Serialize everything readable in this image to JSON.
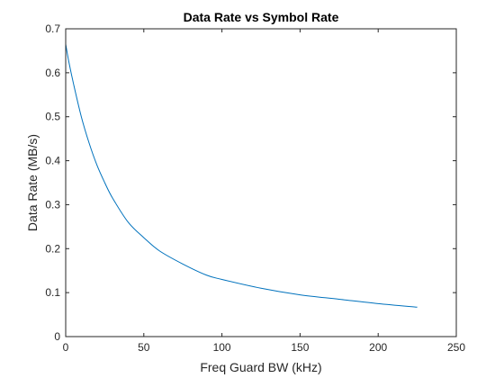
{
  "chart_data": {
    "type": "line",
    "title": "Data Rate vs Symbol Rate",
    "xlabel": "Freq Guard BW (kHz)",
    "ylabel": "Data Rate (MB/s)",
    "xlim": [
      0,
      250
    ],
    "ylim": [
      0,
      0.7
    ],
    "xticks": [
      0,
      50,
      100,
      150,
      200,
      250
    ],
    "yticks": [
      0,
      0.1,
      0.2,
      0.3,
      0.4,
      0.5,
      0.6,
      0.7
    ],
    "xtick_labels": [
      "0",
      "50",
      "100",
      "150",
      "200",
      "250"
    ],
    "ytick_labels": [
      "0",
      "0.1",
      "0.2",
      "0.3",
      "0.4",
      "0.5",
      "0.6",
      "0.7"
    ],
    "grid": false,
    "box": true,
    "series": [
      {
        "color": "#0072BD",
        "x": [
          0,
          2,
          5,
          10,
          15,
          20,
          25,
          30,
          40,
          50,
          60,
          75,
          90,
          100,
          125,
          150,
          175,
          200,
          225
        ],
        "y": [
          0.665,
          0.625,
          0.575,
          0.5,
          0.44,
          0.39,
          0.35,
          0.315,
          0.26,
          0.225,
          0.195,
          0.165,
          0.14,
          0.13,
          0.11,
          0.095,
          0.085,
          0.075,
          0.067
        ]
      }
    ]
  }
}
